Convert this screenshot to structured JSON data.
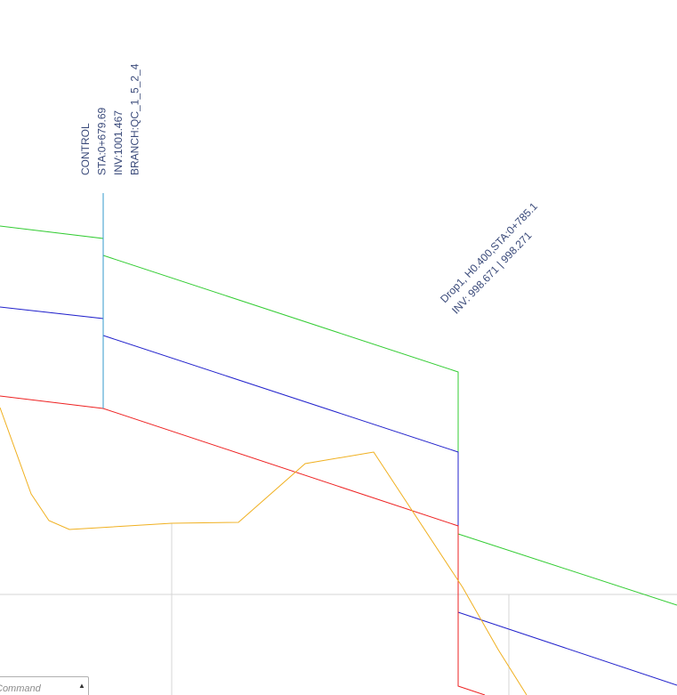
{
  "annotations": {
    "control": {
      "line1": "CONTROL",
      "line2": "STA:0+679.69",
      "line3": "INV:1001.467",
      "line4": "BRANCH:QC_1_5_2_4"
    },
    "drop": {
      "line1": "Drop1, H0.400,STA:0+785.1",
      "line2": "INV: 998.671 | 998.271"
    }
  },
  "command": {
    "placeholder": "Command"
  },
  "colors": {
    "ground_line": "#33cc33",
    "crown_line": "#2222cc",
    "invert_line": "#ee2222",
    "existing_ground": "#f0b020",
    "marker_line": "#3399cc",
    "grid": "#d0d0d0",
    "label": "#3a4a7a"
  },
  "icons": {
    "dropdown": "caret-up-icon"
  }
}
